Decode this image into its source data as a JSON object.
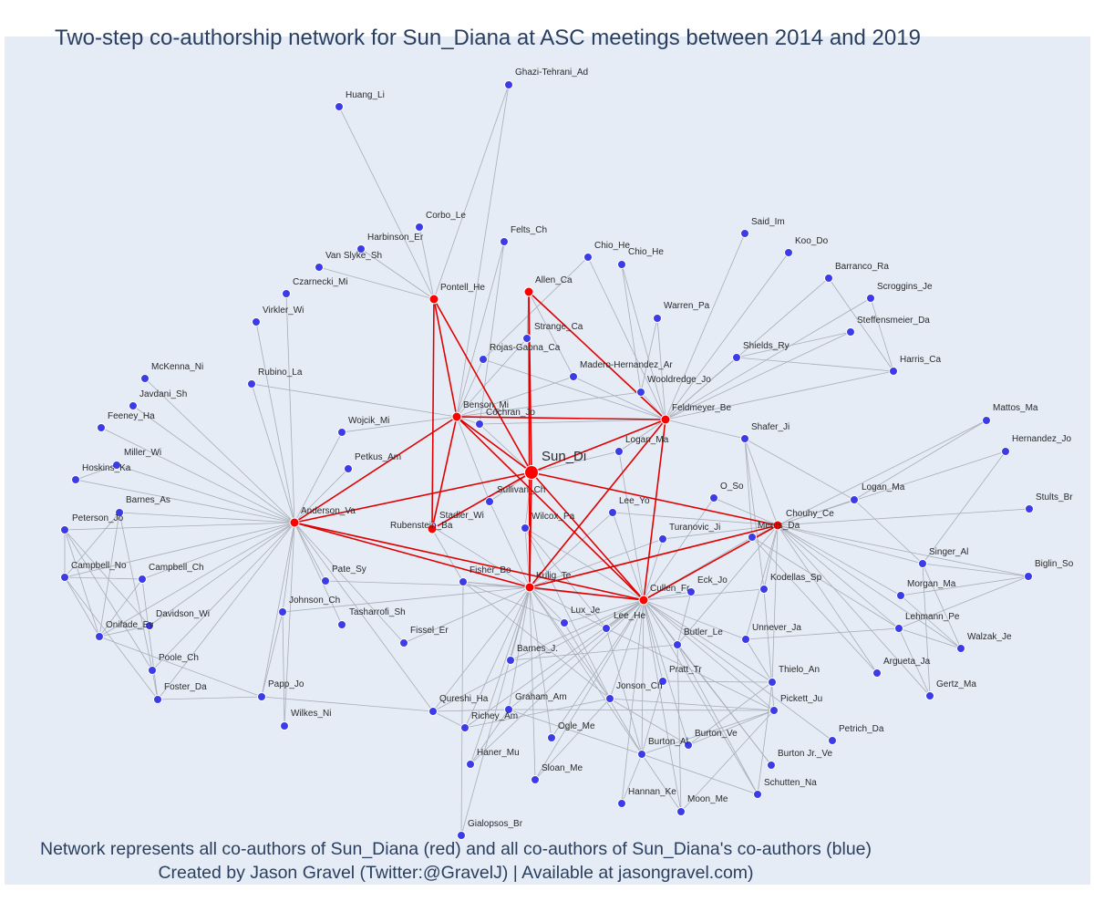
{
  "title": "Two-step co-authorship network for Sun_Diana at ASC meetings between 2014 and 2019",
  "footer": {
    "line1": "Network represents all co-authors of Sun_Diana (red) and all co-authors of Sun_Diana's co-authors (blue)",
    "line2": "Created by Jason Gravel (Twitter:@GravelJ) | Available at jasongravel.com)"
  },
  "colors": {
    "background": "#e5ecf6",
    "coauthor_node": "#ff0000",
    "second_step_node": "#3b3be8",
    "coauthor_edge": "#e00000",
    "other_edge": "#a8adb8",
    "text": "#2a3f5f"
  },
  "center_node": "Sun_Di",
  "coauthors": [
    "Pontell_He",
    "Allen_Ca",
    "Benson_Mi",
    "Feldmeyer_Be",
    "Anderson_Va",
    "Rubenstein_Ba",
    "Kulig_Te",
    "Cullen_Fr",
    "Chouhy_Ce"
  ],
  "second_step_nodes": [
    "Ghazi-Tehrani_Ad",
    "Huang_Li",
    "Corbo_Le",
    "Harbinson_Er",
    "Van Slyke_Sh",
    "Czarnecki_Mi",
    "Virkler_Wi",
    "Felts_Ch",
    "Chio_He",
    "Chio_He",
    "Said_Im",
    "Koo_Do",
    "Barranco_Ra",
    "Scroggins_Je",
    "Steffensmeier_Da",
    "Harris_Ca",
    "Warren_Pa",
    "Shields_Ry",
    "Strange_Ca",
    "Rojas-Gaona_Ca",
    "Madero-Hernandez_Ar",
    "Wooldredge_Jo",
    "McKenna_Ni",
    "Javdani_Sh",
    "Feeney_Ha",
    "Rubino_La",
    "Wojcik_Mi",
    "Cochran_Jo",
    "Logan_Ma",
    "Shafer_Ji",
    "Mattos_Ma",
    "Hernandez_Jo",
    "Miller_Wi",
    "Hoskins_Ka",
    "Petkus_Am",
    "Stults_Br",
    "Barnes_As",
    "Peterson_Jo",
    "Sullivan_Ch",
    "O_So",
    "Lee_Yo",
    "Logan_Ma",
    "Stadler_Wi",
    "Wilcox_Pa",
    "Meers_Da",
    "Turanovic_Ji",
    "Singer_Al",
    "Biglin_So",
    "Campbell_No",
    "Campbell_Ch",
    "Pate_Sy",
    "Fisher_Bo",
    "Eck_Jo",
    "Kodellas_Sp",
    "Morgan_Ma",
    "Davidson_Wi",
    "Johnson_Ch",
    "Tasharrofi_Sh",
    "Lehmann_Pe",
    "Onifade_Ey",
    "Lux_Je",
    "Lee_He",
    "Unnever_Ja",
    "Walzak_Je",
    "Fissel_Er",
    "Barnes_J.",
    "Butler_Le",
    "Poole_Ch",
    "Argueta_Ja",
    "Thielo_An",
    "Pratt_Tr",
    "Gertz_Ma",
    "Papp_Jo",
    "Foster_Da",
    "Jonson_Ch",
    "Qureshi_Ha",
    "Graham_Am",
    "Pickett_Ju",
    "Wilkes_Ni",
    "Richey_Am",
    "Ogle_Me",
    "Petrich_Da",
    "Burton_Ve",
    "Burton_Al",
    "Burton Jr._Ve",
    "Haner_Mu",
    "Sloan_Me",
    "Schutten_Na",
    "Hannan_Ke",
    "Moon_Me",
    "Gialopsos_Br"
  ]
}
